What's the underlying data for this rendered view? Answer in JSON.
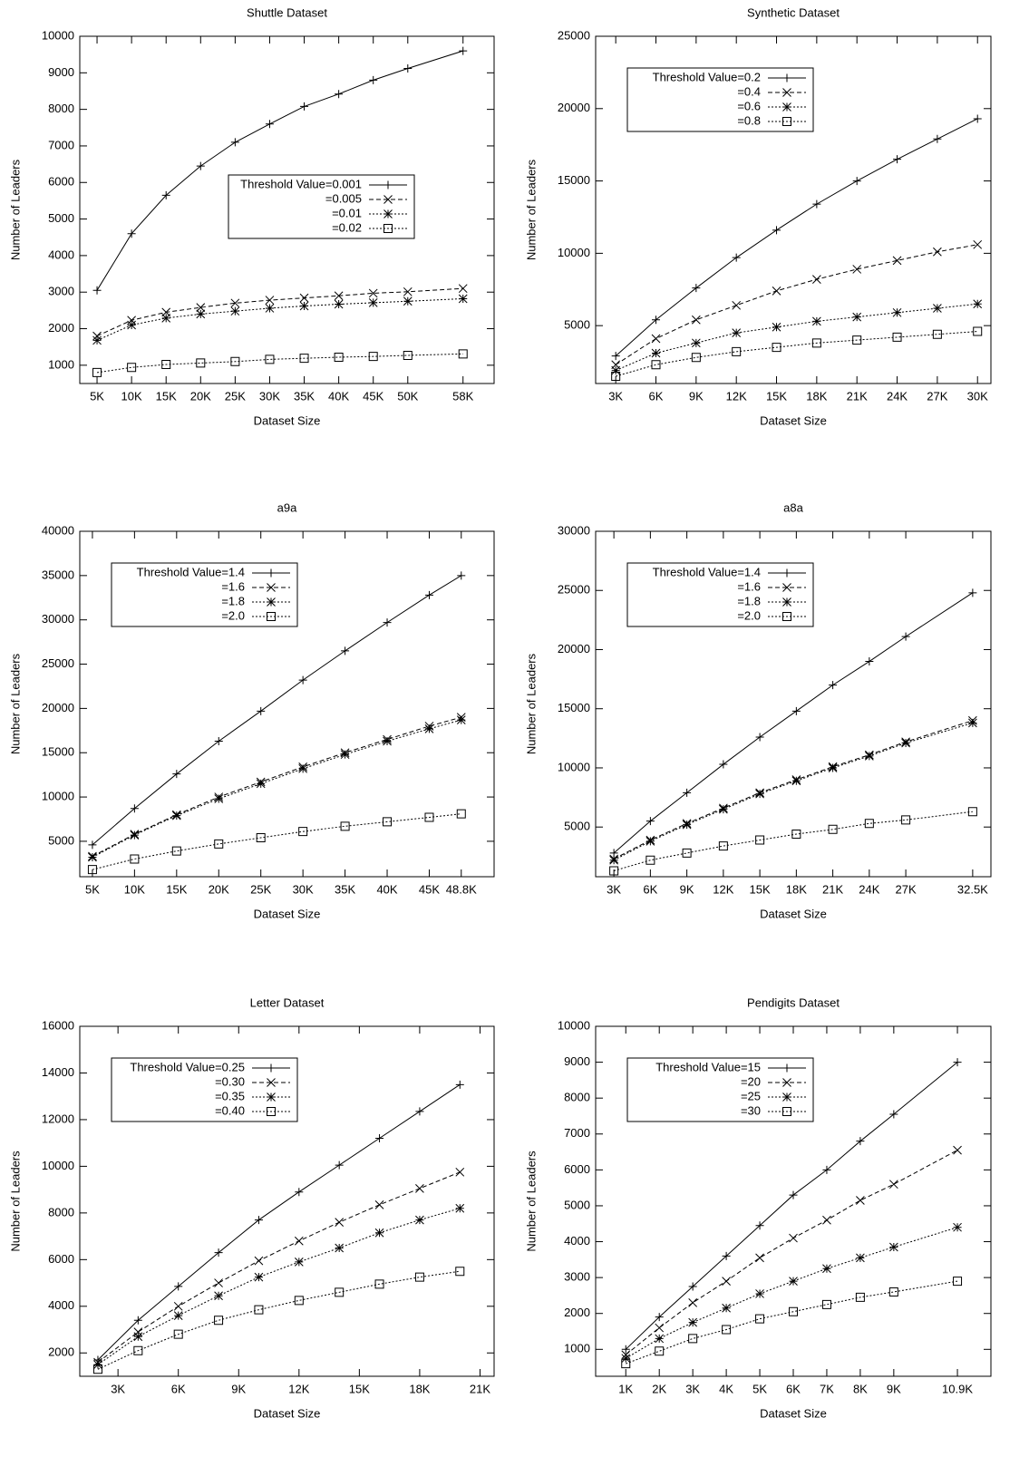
{
  "chart_data": [
    {
      "type": "line",
      "title": "Shuttle Dataset",
      "x_label": "Dataset Size",
      "y_label": "Number of Leaders",
      "legend": "center right",
      "x": [
        5000,
        10000,
        15000,
        20000,
        25000,
        30000,
        35000,
        40000,
        45000,
        50000,
        58000
      ],
      "xlim": [
        2500,
        62500
      ],
      "ylim": [
        500,
        10000
      ],
      "xticks": [
        {
          "value": 5000,
          "label": "5K"
        },
        {
          "value": 10000,
          "label": "10K"
        },
        {
          "value": 15000,
          "label": "15K"
        },
        {
          "value": 20000,
          "label": "20K"
        },
        {
          "value": 25000,
          "label": "25K"
        },
        {
          "value": 30000,
          "label": "30K"
        },
        {
          "value": 35000,
          "label": "35K"
        },
        {
          "value": 40000,
          "label": "40K"
        },
        {
          "value": 45000,
          "label": "45K"
        },
        {
          "value": 50000,
          "label": "50K"
        },
        {
          "value": 58000,
          "label": "58K"
        }
      ],
      "yticks": [
        1000,
        2000,
        3000,
        4000,
        5000,
        6000,
        7000,
        8000,
        9000,
        10000
      ],
      "series": [
        {
          "name": "Threshold Value=0.001",
          "color": "#000000",
          "dash": "solid",
          "marker": "plus",
          "values": [
            3050,
            4600,
            5650,
            6450,
            7100,
            7600,
            8080,
            8420,
            8800,
            9120,
            9600
          ]
        },
        {
          "name": "=0.005",
          "color": "#000000",
          "dash": "dashed",
          "marker": "cross",
          "values": [
            1800,
            2230,
            2450,
            2580,
            2700,
            2780,
            2840,
            2900,
            2970,
            3010,
            3100
          ]
        },
        {
          "name": "=0.01",
          "color": "#000000",
          "dash": "dotted",
          "marker": "star",
          "values": [
            1680,
            2100,
            2290,
            2400,
            2480,
            2560,
            2620,
            2670,
            2710,
            2750,
            2820
          ]
        },
        {
          "name": "=0.02",
          "color": "#000000",
          "dash": "dotted",
          "marker": "square",
          "values": [
            800,
            940,
            1020,
            1060,
            1100,
            1160,
            1190,
            1220,
            1240,
            1270,
            1310
          ]
        }
      ]
    },
    {
      "type": "line",
      "title": "Synthetic Dataset",
      "x_label": "Dataset Size",
      "y_label": "Number of Leaders",
      "legend": "upper left",
      "x": [
        3000,
        6000,
        9000,
        12000,
        15000,
        18000,
        21000,
        24000,
        27000,
        30000
      ],
      "xlim": [
        1500,
        31000
      ],
      "ylim": [
        1000,
        25000
      ],
      "xticks": [
        {
          "value": 3000,
          "label": "3K"
        },
        {
          "value": 6000,
          "label": "6K"
        },
        {
          "value": 9000,
          "label": "9K"
        },
        {
          "value": 12000,
          "label": "12K"
        },
        {
          "value": 15000,
          "label": "15K"
        },
        {
          "value": 18000,
          "label": "18K"
        },
        {
          "value": 21000,
          "label": "21K"
        },
        {
          "value": 24000,
          "label": "24K"
        },
        {
          "value": 27000,
          "label": "27K"
        },
        {
          "value": 30000,
          "label": "30K"
        }
      ],
      "yticks": [
        5000,
        10000,
        15000,
        20000,
        25000
      ],
      "series": [
        {
          "name": "Threshold Value=0.2",
          "color": "#000000",
          "dash": "solid",
          "marker": "plus",
          "values": [
            2900,
            5400,
            7600,
            9700,
            11600,
            13400,
            15000,
            16500,
            17900,
            19300
          ]
        },
        {
          "name": "=0.4",
          "color": "#000000",
          "dash": "dashed",
          "marker": "cross",
          "values": [
            2300,
            4100,
            5400,
            6400,
            7400,
            8200,
            8900,
            9500,
            10100,
            10600
          ]
        },
        {
          "name": "=0.6",
          "color": "#000000",
          "dash": "dotted",
          "marker": "star",
          "values": [
            1900,
            3100,
            3800,
            4500,
            4900,
            5300,
            5600,
            5900,
            6200,
            6500
          ]
        },
        {
          "name": "=0.8",
          "color": "#000000",
          "dash": "dotted",
          "marker": "square",
          "values": [
            1500,
            2300,
            2800,
            3200,
            3500,
            3800,
            4000,
            4200,
            4400,
            4600
          ]
        }
      ]
    },
    {
      "type": "line",
      "title": "a9a",
      "x_label": "Dataset Size",
      "y_label": "Number of Leaders",
      "legend": "upper left",
      "x": [
        5000,
        10000,
        15000,
        20000,
        25000,
        30000,
        35000,
        40000,
        45000,
        48800
      ],
      "xlim": [
        3500,
        52700
      ],
      "ylim": [
        1000,
        40000
      ],
      "xticks": [
        {
          "value": 5000,
          "label": "5K"
        },
        {
          "value": 10000,
          "label": "10K"
        },
        {
          "value": 15000,
          "label": "15K"
        },
        {
          "value": 20000,
          "label": "20K"
        },
        {
          "value": 25000,
          "label": "25K"
        },
        {
          "value": 30000,
          "label": "30K"
        },
        {
          "value": 35000,
          "label": "35K"
        },
        {
          "value": 40000,
          "label": "40K"
        },
        {
          "value": 45000,
          "label": "45K"
        },
        {
          "value": 48800,
          "label": "48.8K"
        }
      ],
      "yticks": [
        5000,
        10000,
        15000,
        20000,
        25000,
        30000,
        35000,
        40000
      ],
      "series": [
        {
          "name": "Threshold Value=1.4",
          "color": "#000000",
          "dash": "solid",
          "marker": "plus",
          "values": [
            4600,
            8700,
            12600,
            16300,
            19700,
            23200,
            26500,
            29700,
            32800,
            35000
          ]
        },
        {
          "name": "=1.6",
          "color": "#000000",
          "dash": "dashed",
          "marker": "cross",
          "values": [
            3300,
            5800,
            8000,
            10000,
            11700,
            13400,
            15000,
            16500,
            18000,
            19000
          ]
        },
        {
          "name": "=1.8",
          "color": "#000000",
          "dash": "dotted",
          "marker": "star",
          "values": [
            3200,
            5700,
            7900,
            9800,
            11500,
            13200,
            14800,
            16300,
            17700,
            18700
          ]
        },
        {
          "name": "=2.0",
          "color": "#000000",
          "dash": "dotted",
          "marker": "square",
          "values": [
            1800,
            3000,
            3900,
            4700,
            5400,
            6100,
            6700,
            7200,
            7700,
            8100
          ]
        }
      ]
    },
    {
      "type": "line",
      "title": "a8a",
      "x_label": "Dataset Size",
      "y_label": "Number of Leaders",
      "legend": "upper left",
      "x": [
        3000,
        6000,
        9000,
        12000,
        15000,
        18000,
        21000,
        24000,
        27000,
        32500
      ],
      "xlim": [
        1500,
        34000
      ],
      "ylim": [
        800,
        30000
      ],
      "xticks": [
        {
          "value": 3000,
          "label": "3K"
        },
        {
          "value": 6000,
          "label": "6K"
        },
        {
          "value": 9000,
          "label": "9K"
        },
        {
          "value": 12000,
          "label": "12K"
        },
        {
          "value": 15000,
          "label": "15K"
        },
        {
          "value": 18000,
          "label": "18K"
        },
        {
          "value": 21000,
          "label": "21K"
        },
        {
          "value": 24000,
          "label": "24K"
        },
        {
          "value": 27000,
          "label": "27K"
        },
        {
          "value": 32500,
          "label": "32.5K"
        }
      ],
      "yticks": [
        5000,
        10000,
        15000,
        20000,
        25000,
        30000
      ],
      "series": [
        {
          "name": "Threshold Value=1.4",
          "color": "#000000",
          "dash": "solid",
          "marker": "plus",
          "values": [
            2800,
            5500,
            7900,
            10300,
            12600,
            14800,
            17000,
            19000,
            21100,
            24800
          ]
        },
        {
          "name": "=1.6",
          "color": "#000000",
          "dash": "dashed",
          "marker": "cross",
          "values": [
            2300,
            3900,
            5300,
            6600,
            7900,
            9000,
            10100,
            11100,
            12200,
            14000
          ]
        },
        {
          "name": "=1.8",
          "color": "#000000",
          "dash": "dotted",
          "marker": "star",
          "values": [
            2200,
            3800,
            5200,
            6500,
            7800,
            8900,
            10000,
            11000,
            12100,
            13800
          ]
        },
        {
          "name": "=2.0",
          "color": "#000000",
          "dash": "dotted",
          "marker": "square",
          "values": [
            1300,
            2200,
            2800,
            3400,
            3900,
            4400,
            4800,
            5300,
            5600,
            6300
          ]
        }
      ]
    },
    {
      "type": "line",
      "title": "Letter Dataset",
      "x_label": "Dataset Size",
      "y_label": "Number of Leaders",
      "legend": "upper left",
      "x": [
        2000,
        4000,
        6000,
        8000,
        10000,
        12000,
        14000,
        16000,
        18000,
        20000
      ],
      "xlim": [
        1100,
        21700
      ],
      "ylim": [
        1000,
        16000
      ],
      "xticks": [
        {
          "value": 3000,
          "label": "3K"
        },
        {
          "value": 6000,
          "label": "6K"
        },
        {
          "value": 9000,
          "label": "9K"
        },
        {
          "value": 12000,
          "label": "12K"
        },
        {
          "value": 15000,
          "label": "15K"
        },
        {
          "value": 18000,
          "label": "18K"
        },
        {
          "value": 21000,
          "label": "21K"
        }
      ],
      "yticks": [
        2000,
        4000,
        6000,
        8000,
        10000,
        12000,
        14000,
        16000
      ],
      "series": [
        {
          "name": "Threshold Value=0.25",
          "color": "#000000",
          "dash": "solid",
          "marker": "plus",
          "values": [
            1700,
            3400,
            4850,
            6300,
            7700,
            8900,
            10050,
            11200,
            12350,
            13500
          ]
        },
        {
          "name": "=0.30",
          "color": "#000000",
          "dash": "dashed",
          "marker": "cross",
          "values": [
            1600,
            2900,
            4000,
            5000,
            5950,
            6800,
            7600,
            8350,
            9050,
            9750
          ]
        },
        {
          "name": "=0.35",
          "color": "#000000",
          "dash": "dotted",
          "marker": "star",
          "values": [
            1500,
            2700,
            3600,
            4450,
            5250,
            5900,
            6500,
            7150,
            7700,
            8200
          ]
        },
        {
          "name": "=0.40",
          "color": "#000000",
          "dash": "dotted",
          "marker": "square",
          "values": [
            1300,
            2100,
            2800,
            3400,
            3850,
            4250,
            4600,
            4950,
            5250,
            5500
          ]
        }
      ]
    },
    {
      "type": "line",
      "title": "Pendigits Dataset",
      "x_label": "Dataset Size",
      "y_label": "Number of Leaders",
      "legend": "upper left",
      "x": [
        1000,
        2000,
        3000,
        4000,
        5000,
        6000,
        7000,
        8000,
        9000,
        10900
      ],
      "xlim": [
        100,
        11900
      ],
      "ylim": [
        250,
        10000
      ],
      "xticks": [
        {
          "value": 1000,
          "label": "1K"
        },
        {
          "value": 2000,
          "label": "2K"
        },
        {
          "value": 3000,
          "label": "3K"
        },
        {
          "value": 4000,
          "label": "4K"
        },
        {
          "value": 5000,
          "label": "5K"
        },
        {
          "value": 6000,
          "label": "6K"
        },
        {
          "value": 7000,
          "label": "7K"
        },
        {
          "value": 8000,
          "label": "8K"
        },
        {
          "value": 9000,
          "label": "9K"
        },
        {
          "value": 10900,
          "label": "10.9K"
        }
      ],
      "yticks": [
        1000,
        2000,
        3000,
        4000,
        5000,
        6000,
        7000,
        8000,
        9000,
        10000
      ],
      "series": [
        {
          "name": "Threshold Value=15",
          "color": "#000000",
          "dash": "solid",
          "marker": "plus",
          "values": [
            1000,
            1900,
            2750,
            3600,
            4450,
            5300,
            6000,
            6800,
            7550,
            9000
          ]
        },
        {
          "name": "=20",
          "color": "#000000",
          "dash": "dashed",
          "marker": "cross",
          "values": [
            850,
            1600,
            2300,
            2900,
            3550,
            4100,
            4600,
            5150,
            5600,
            6550
          ]
        },
        {
          "name": "=25",
          "color": "#000000",
          "dash": "dotted",
          "marker": "star",
          "values": [
            750,
            1300,
            1750,
            2150,
            2550,
            2900,
            3250,
            3550,
            3850,
            4400
          ]
        },
        {
          "name": "=30",
          "color": "#000000",
          "dash": "dotted",
          "marker": "square",
          "values": [
            600,
            950,
            1300,
            1550,
            1850,
            2050,
            2250,
            2450,
            2600,
            2900
          ]
        }
      ]
    }
  ]
}
